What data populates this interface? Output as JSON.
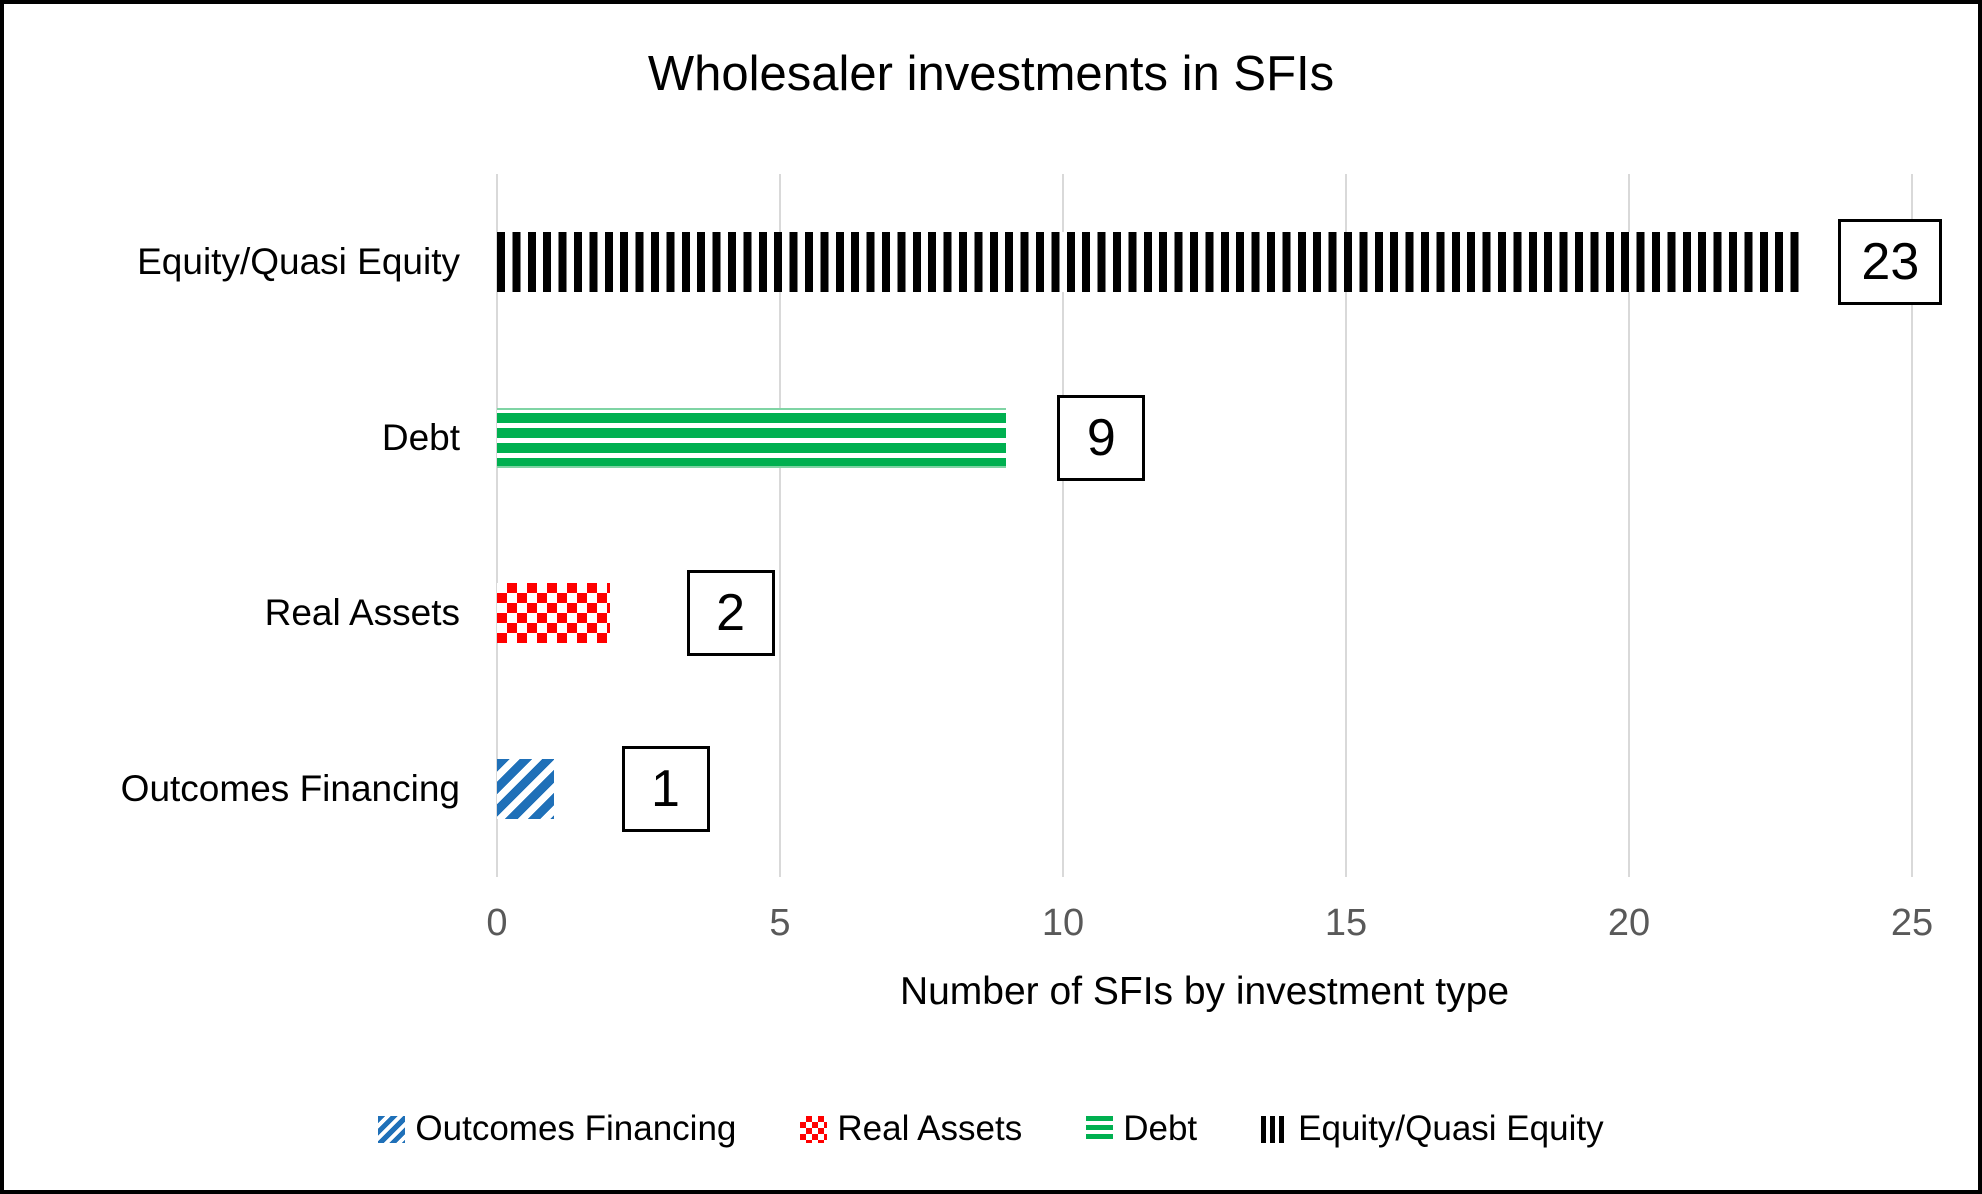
{
  "chart_data": {
    "type": "bar",
    "orientation": "horizontal",
    "title": "Wholesaler investments in SFIs",
    "xlabel": "Number of SFIs by investment type",
    "ylabel": "",
    "xlim": [
      0,
      25
    ],
    "xticks": [
      0,
      5,
      10,
      15,
      20,
      25
    ],
    "grid": "vertical-only",
    "categories": [
      "Equity/Quasi Equity",
      "Debt",
      "Real Assets",
      "Outcomes Financing"
    ],
    "values": [
      23,
      9,
      2,
      1
    ],
    "rows": [
      {
        "label": "Equity/Quasi Equity",
        "value": 23,
        "pattern": "equity",
        "pattern_desc": "black-vertical-stripes",
        "color": "#000000",
        "label_box_x": 23.7
      },
      {
        "label": "Debt",
        "value": 9,
        "pattern": "debt",
        "pattern_desc": "green-horizontal-stripes",
        "color": "#00B050",
        "label_box_x": 9.9
      },
      {
        "label": "Real Assets",
        "value": 2,
        "pattern": "real",
        "pattern_desc": "red-checkerboard",
        "color": "#FF0000",
        "label_box_x": 3.35
      },
      {
        "label": "Outcomes Financing",
        "value": 1,
        "pattern": "outcomes",
        "pattern_desc": "blue-diagonal-stripes",
        "color": "#1F70B8",
        "label_box_x": 2.2
      }
    ],
    "data_labels": {
      "style": "boxed-outside-end",
      "values": [
        23,
        9,
        2,
        1
      ]
    },
    "legend": {
      "position": "bottom",
      "entries": [
        {
          "label": "Outcomes Financing",
          "pattern": "outcomes"
        },
        {
          "label": "Real Assets",
          "pattern": "real"
        },
        {
          "label": "Debt",
          "pattern": "debt"
        },
        {
          "label": "Equity/Quasi Equity",
          "pattern": "equity"
        }
      ]
    }
  },
  "colors": {
    "background": "#FFFFFF",
    "frame_border": "#000000",
    "gridline": "#D9D9D9",
    "tick_text": "#595959",
    "text": "#000000",
    "series_blue": "#1F70B8",
    "series_red": "#FF0000",
    "series_green": "#00B050",
    "series_black": "#000000"
  }
}
